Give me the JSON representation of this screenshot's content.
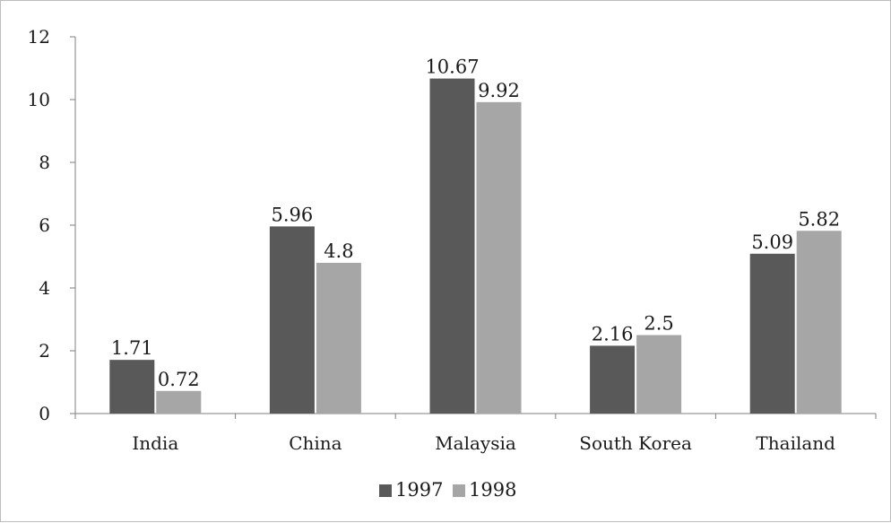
{
  "chart_data": {
    "type": "bar",
    "title": "",
    "xlabel": "",
    "ylabel": "",
    "ylim": [
      0,
      12
    ],
    "yticks": [
      0,
      2,
      4,
      6,
      8,
      10,
      12
    ],
    "grid": false,
    "legend_position": "bottom",
    "categories": [
      "India",
      "China",
      "Malaysia",
      "South Korea",
      "Thailand"
    ],
    "series": [
      {
        "name": "1997",
        "color": "#595959",
        "values": [
          1.71,
          5.96,
          10.67,
          2.16,
          5.09
        ],
        "labels": [
          "1.71",
          "5.96",
          "10.67",
          "2.16",
          "5.09"
        ]
      },
      {
        "name": "1998",
        "color": "#a6a6a6",
        "values": [
          0.72,
          4.8,
          9.92,
          2.5,
          5.82
        ],
        "labels": [
          "0.72",
          "4.8",
          "9.92",
          "2.5",
          "5.82"
        ]
      }
    ]
  }
}
